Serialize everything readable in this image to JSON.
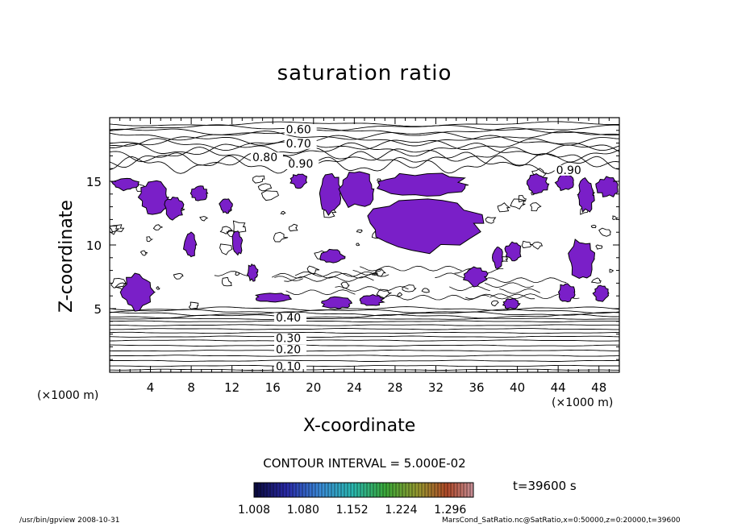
{
  "chart_data": {
    "type": "contour",
    "title": "saturation ratio",
    "xlabel": "X-coordinate",
    "ylabel": "Z-coordinate",
    "x_unit": "(×1000 m)",
    "y_unit": "(×1000 m)",
    "xlim": [
      0,
      50
    ],
    "ylim": [
      0,
      20
    ],
    "x_ticks": [
      4,
      8,
      12,
      16,
      20,
      24,
      28,
      32,
      36,
      40,
      44,
      48
    ],
    "y_ticks": [
      5,
      10,
      15
    ],
    "contour_interval_text": "CONTOUR INTERVAL = 5.000E-02",
    "upper_contour_labels": [
      {
        "text": "0.60",
        "x": 17.3,
        "z": 18.9
      },
      {
        "text": "0.70",
        "x": 17.3,
        "z": 17.8
      },
      {
        "text": "0.80",
        "x": 14.0,
        "z": 16.7
      },
      {
        "text": "0.90",
        "x": 17.5,
        "z": 16.2
      },
      {
        "text": "0.90",
        "x": 43.8,
        "z": 15.7
      }
    ],
    "lower_contour_labels": [
      {
        "text": "0.40",
        "x": 16.3,
        "z": 4.1
      },
      {
        "text": "0.30",
        "x": 16.3,
        "z": 2.5
      },
      {
        "text": "0.20",
        "x": 16.3,
        "z": 1.6
      },
      {
        "text": "0.10",
        "x": 16.3,
        "z": 0.3
      }
    ],
    "upper_level_z": [
      19.5,
      19.2,
      18.9,
      18.6,
      18.2,
      17.9,
      17.5,
      17.1,
      16.7,
      16.3
    ],
    "lower_level_z": [
      5.0,
      4.8,
      4.6,
      4.4,
      4.2,
      4.0,
      3.7,
      3.4,
      3.1,
      2.8,
      2.5,
      2.1,
      1.7,
      1.3,
      0.9,
      0.5,
      0.2
    ],
    "supersaturated_regions": [
      {
        "x": [
          0.3,
          2.8
        ],
        "z": [
          14.3,
          15.3
        ]
      },
      {
        "x": [
          3.0,
          5.8
        ],
        "z": [
          12.5,
          15.0
        ]
      },
      {
        "x": [
          5.4,
          7.2
        ],
        "z": [
          12.0,
          13.8
        ]
      },
      {
        "x": [
          8.0,
          9.6
        ],
        "z": [
          13.5,
          14.6
        ]
      },
      {
        "x": [
          10.8,
          12.0
        ],
        "z": [
          12.5,
          13.6
        ]
      },
      {
        "x": [
          1.2,
          4.2
        ],
        "z": [
          4.9,
          7.7
        ]
      },
      {
        "x": [
          7.3,
          8.5
        ],
        "z": [
          9.0,
          11.0
        ]
      },
      {
        "x": [
          12.0,
          13.0
        ],
        "z": [
          9.2,
          11.0
        ]
      },
      {
        "x": [
          13.5,
          14.5
        ],
        "z": [
          7.2,
          8.5
        ]
      },
      {
        "x": [
          14.2,
          17.8
        ],
        "z": [
          5.5,
          6.2
        ]
      },
      {
        "x": [
          17.8,
          19.4
        ],
        "z": [
          14.5,
          15.6
        ]
      },
      {
        "x": [
          20.5,
          22.8
        ],
        "z": [
          12.5,
          15.6
        ]
      },
      {
        "x": [
          22.5,
          26.0
        ],
        "z": [
          13.0,
          15.8
        ]
      },
      {
        "x": [
          25.0,
          36.0
        ],
        "z": [
          9.6,
          13.8
        ]
      },
      {
        "x": [
          26.0,
          35.0
        ],
        "z": [
          13.8,
          15.6
        ]
      },
      {
        "x": [
          20.5,
          23.0
        ],
        "z": [
          8.6,
          9.6
        ]
      },
      {
        "x": [
          20.8,
          23.8
        ],
        "z": [
          5.0,
          5.9
        ]
      },
      {
        "x": [
          24.5,
          26.8
        ],
        "z": [
          5.2,
          6.1
        ]
      },
      {
        "x": [
          34.8,
          37.0
        ],
        "z": [
          6.8,
          8.2
        ]
      },
      {
        "x": [
          37.6,
          38.6
        ],
        "z": [
          8.2,
          9.8
        ]
      },
      {
        "x": [
          38.8,
          40.4
        ],
        "z": [
          8.8,
          10.2
        ]
      },
      {
        "x": [
          38.6,
          40.2
        ],
        "z": [
          5.0,
          5.8
        ]
      },
      {
        "x": [
          41.0,
          43.0
        ],
        "z": [
          14.0,
          15.6
        ]
      },
      {
        "x": [
          43.8,
          45.5
        ],
        "z": [
          14.3,
          15.5
        ]
      },
      {
        "x": [
          46.0,
          47.5
        ],
        "z": [
          12.6,
          15.2
        ]
      },
      {
        "x": [
          47.8,
          50.0
        ],
        "z": [
          13.8,
          15.3
        ]
      },
      {
        "x": [
          45.0,
          47.5
        ],
        "z": [
          7.4,
          10.4
        ]
      },
      {
        "x": [
          47.5,
          49.0
        ],
        "z": [
          5.6,
          6.8
        ]
      },
      {
        "x": [
          44.0,
          45.6
        ],
        "z": [
          5.6,
          7.0
        ]
      }
    ],
    "colorbar": {
      "ticks": [
        "1.008",
        "1.080",
        "1.152",
        "1.224",
        "1.296"
      ],
      "range": [
        1.008,
        1.33
      ]
    },
    "time_label": "t=39600 s",
    "fill_color": "#7a1fc8",
    "line_color": "#000000"
  },
  "footer": {
    "left": "/usr/bin/gpview   2008-10-31",
    "right": "MarsCond_SatRatio.nc@SatRatio,x=0:50000,z=0:20000,t=39600"
  }
}
